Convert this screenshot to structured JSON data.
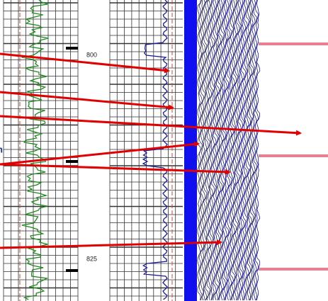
{
  "edge_text": "n",
  "depth_labels": [
    "800",
    "825"
  ]
}
